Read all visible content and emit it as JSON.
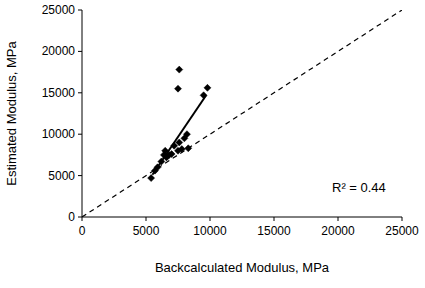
{
  "chart_data": {
    "type": "scatter",
    "x_label": "Backcalculated Modulus, MPa",
    "y_label": "Estimated Modulus, MPa",
    "annotations": [
      "R² = 0.44"
    ],
    "xlim": [
      0,
      25000
    ],
    "ylim": [
      0,
      25000
    ],
    "xticks": [
      0,
      5000,
      10000,
      15000,
      20000,
      25000
    ],
    "yticks": [
      0,
      5000,
      10000,
      15000,
      20000,
      25000
    ],
    "grid": false,
    "series": [
      {
        "type": "scatter",
        "marker": "diamond",
        "color": "#000000",
        "x": [
          5400,
          5700,
          5900,
          6200,
          6400,
          6500,
          6600,
          6800,
          7000,
          7200,
          7500,
          7600,
          7800,
          8000,
          8200,
          8300,
          7500,
          7600,
          9500,
          9800
        ],
        "values": [
          4700,
          5600,
          6000,
          6700,
          7500,
          8000,
          7200,
          7500,
          7600,
          8600,
          8000,
          9000,
          8200,
          9500,
          10000,
          8300,
          15500,
          17800,
          14700,
          15600
        ]
      },
      {
        "type": "line",
        "line_style": "solid",
        "color": "#000000",
        "x": [
          5500,
          9700
        ],
        "values": [
          5100,
          14700
        ]
      },
      {
        "type": "line",
        "line_style": "dashed",
        "color": "#000000",
        "x": [
          0,
          25000
        ],
        "values": [
          0,
          25000
        ]
      }
    ]
  }
}
